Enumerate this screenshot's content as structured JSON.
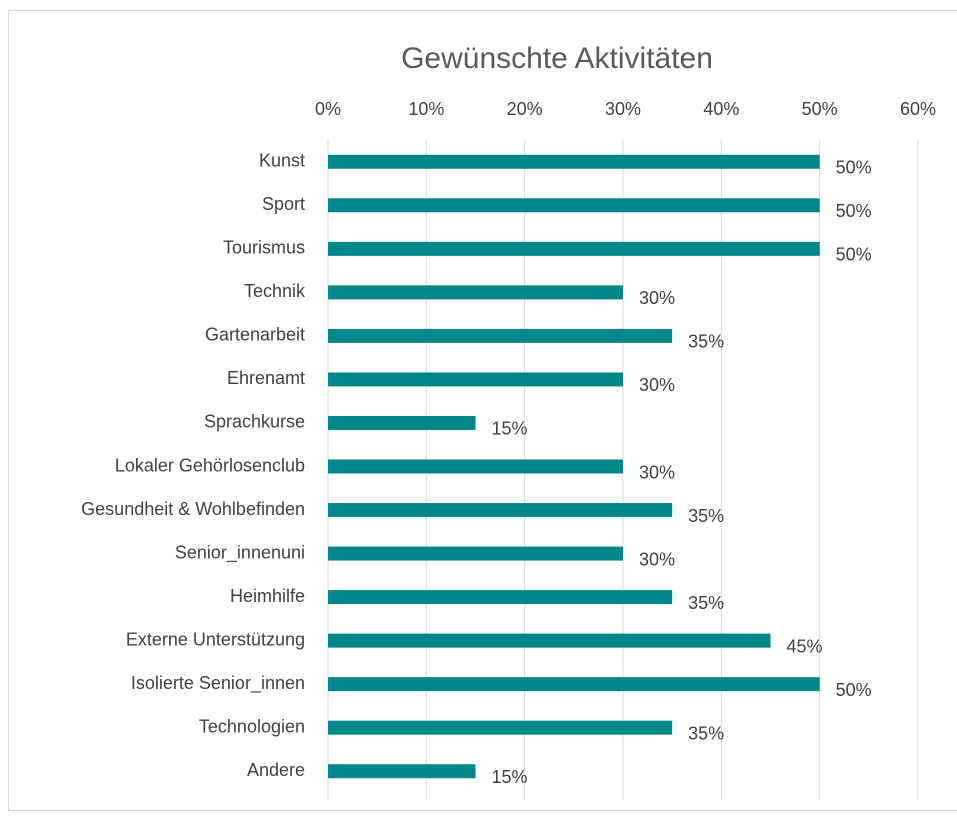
{
  "chart_data": {
    "type": "barh",
    "title": "Gewünschte Aktivitäten",
    "categories": [
      "Kunst",
      "Sport",
      "Tourismus",
      "Technik",
      "Gartenarbeit",
      "Ehrenamt",
      "Sprachkurse",
      "Lokaler Gehörlosenclub",
      "Gesundheit & Wohlbefinden",
      "Senior_innenuni",
      "Heimhilfe",
      "Externe Unterstützung",
      "Isolierte Senior_innen",
      "Technologien",
      "Andere"
    ],
    "values": [
      50,
      50,
      50,
      30,
      35,
      30,
      15,
      30,
      35,
      30,
      35,
      45,
      50,
      35,
      15
    ],
    "value_labels": [
      "50%",
      "50%",
      "50%",
      "30%",
      "35%",
      "30%",
      "15%",
      "30%",
      "35%",
      "30%",
      "35%",
      "45%",
      "50%",
      "35%",
      "15%"
    ],
    "color": "#00878a",
    "xlim": [
      0,
      60
    ],
    "xticks": [
      {
        "value": 0,
        "label": "0%"
      },
      {
        "value": 10,
        "label": "10%"
      },
      {
        "value": 20,
        "label": "20%"
      },
      {
        "value": 30,
        "label": "30%"
      },
      {
        "value": 40,
        "label": "40%"
      },
      {
        "value": 50,
        "label": "50%"
      },
      {
        "value": 60,
        "label": "60%"
      }
    ],
    "grid": true
  }
}
